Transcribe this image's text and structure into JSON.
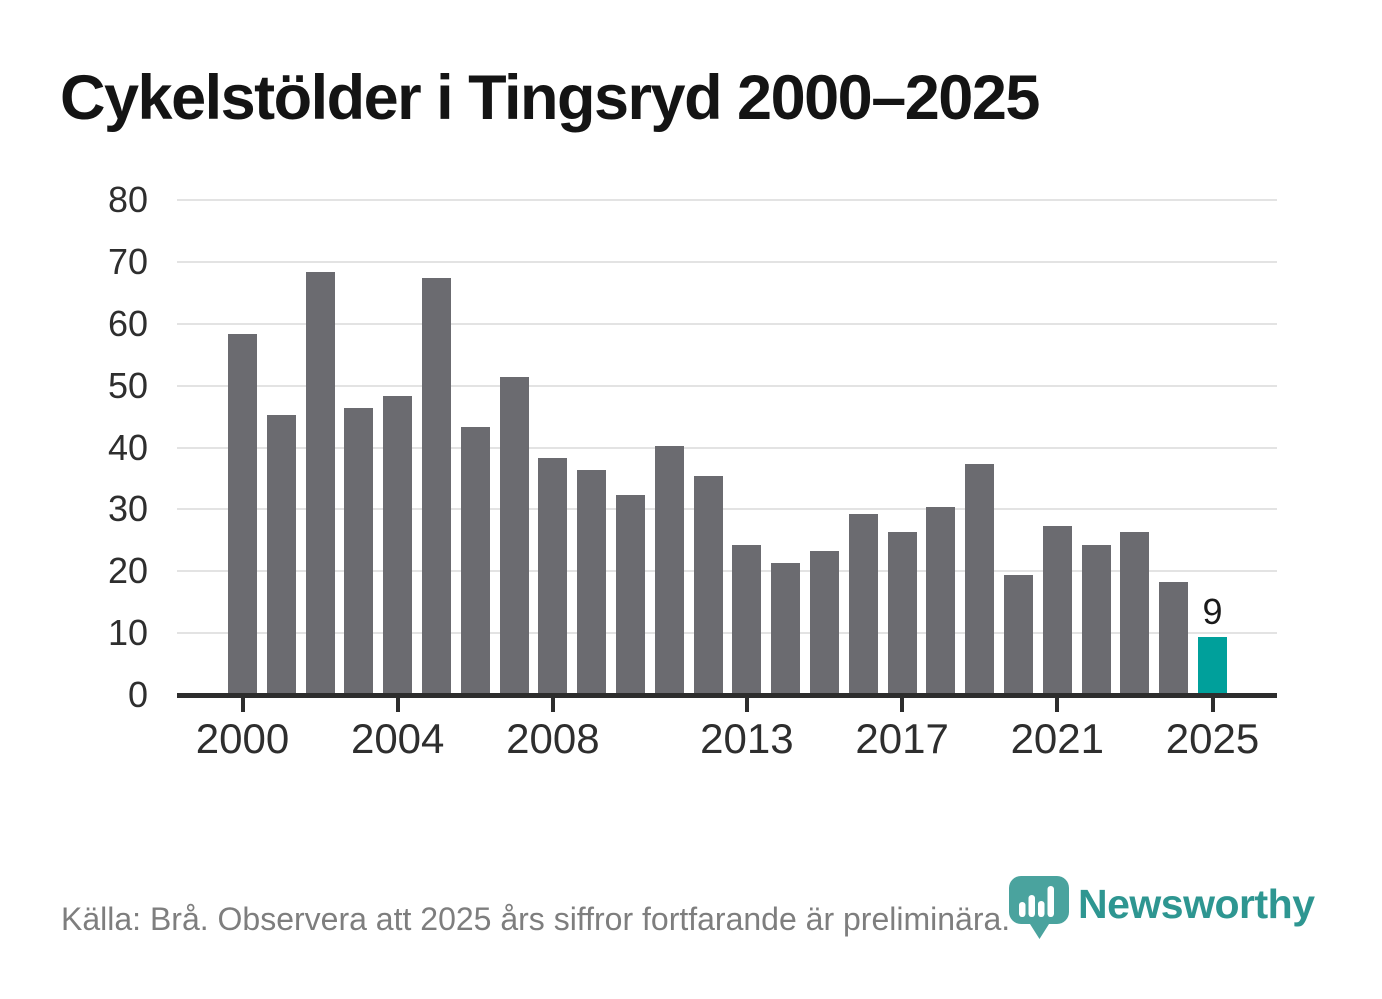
{
  "title": "Cykelstölder i Tingsryd 2000–2025",
  "source_note": "Källa: Brå. Observera att 2025 års siffror fortfarande är preliminära.",
  "branding": {
    "name": "Newsworthy",
    "logo_icon": "newsworthy-pin-icon"
  },
  "colors": {
    "bar": "#6b6b70",
    "highlight": "#00a09b",
    "axis": "#2d2d2d",
    "grid": "#e3e3e3",
    "tick_label": "#2e2e2e",
    "title_text": "#141414",
    "source_text": "#7e7e7e",
    "brand_text": "#2e9691",
    "brand_logo": "#4aa39e",
    "background": "#ffffff"
  },
  "chart_data": {
    "type": "bar",
    "title": "Cykelstölder i Tingsryd 2000–2025",
    "xlabel": "",
    "ylabel": "",
    "categories": [
      2000,
      2001,
      2002,
      2003,
      2004,
      2005,
      2006,
      2007,
      2008,
      2009,
      2010,
      2011,
      2012,
      2013,
      2014,
      2015,
      2016,
      2017,
      2018,
      2019,
      2020,
      2021,
      2022,
      2023,
      2024,
      2025
    ],
    "values": [
      58,
      45,
      68,
      46,
      48,
      67,
      43,
      51,
      38,
      36,
      32,
      40,
      35,
      24,
      21,
      23,
      29,
      26,
      30,
      37,
      19,
      27,
      24,
      26,
      18,
      9
    ],
    "highlight_year": 2025,
    "highlight_value_label": "9",
    "x_tick_years": [
      2000,
      2004,
      2008,
      2013,
      2017,
      2021,
      2025
    ],
    "y_ticks": [
      0,
      10,
      20,
      30,
      40,
      50,
      60,
      70,
      80
    ],
    "ylim": [
      0,
      80
    ],
    "grid": "horizontal",
    "legend": "none"
  }
}
